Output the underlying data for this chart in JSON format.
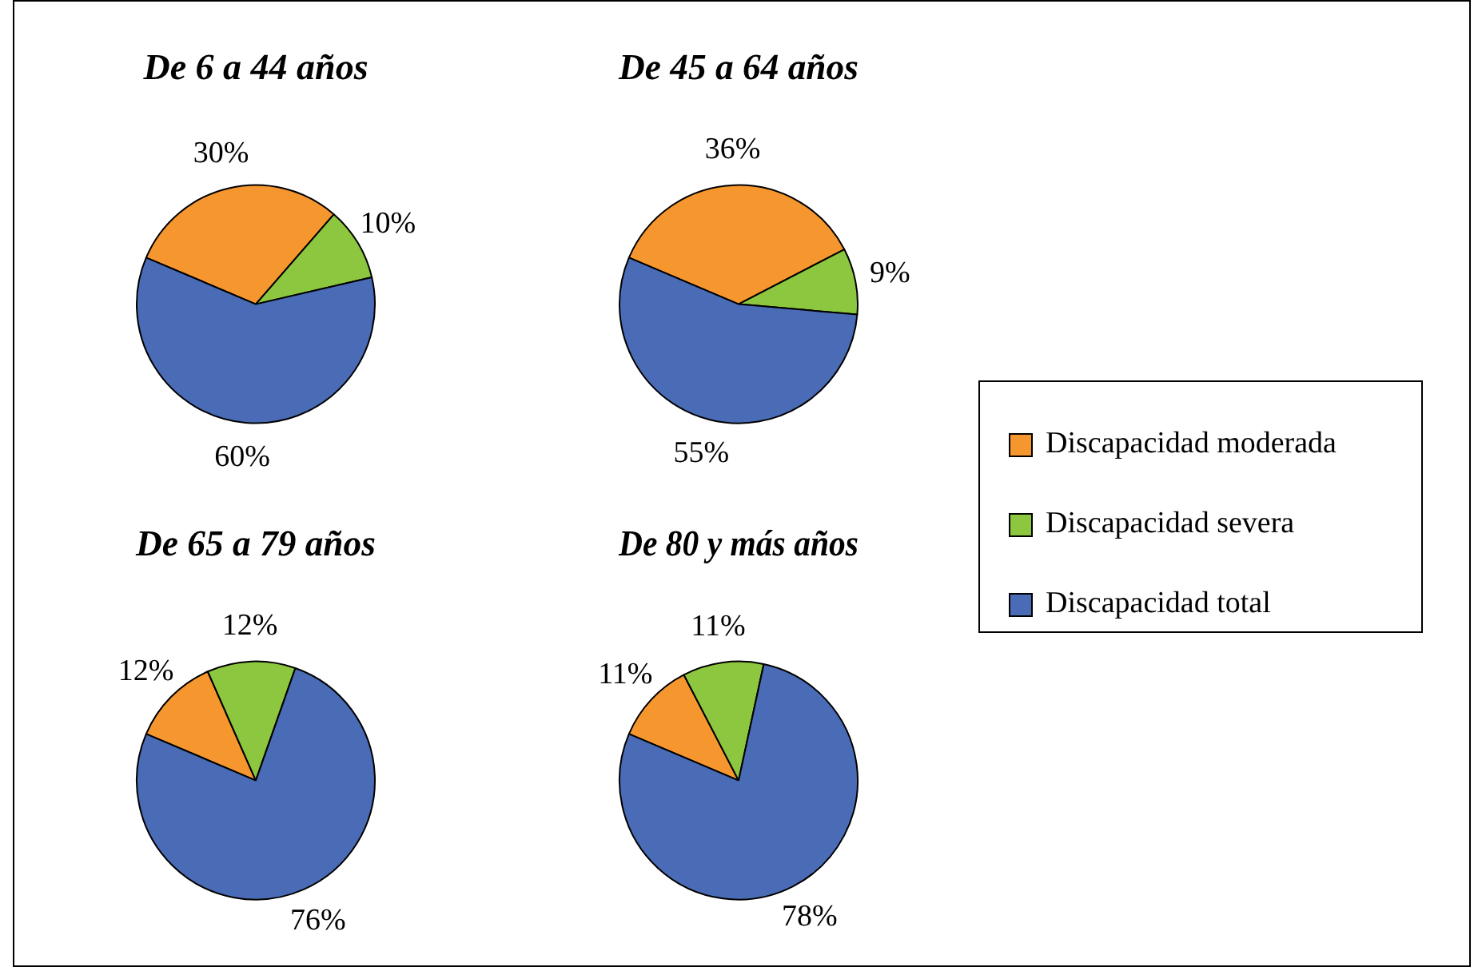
{
  "chart_data": [
    {
      "type": "pie",
      "title": "De 6 a 44 años",
      "categories": [
        "Discapacidad moderada",
        "Discapacidad severa",
        "Discapacidad total"
      ],
      "values": [
        30,
        10,
        60
      ],
      "value_labels": [
        "30%",
        "10%",
        "60%"
      ],
      "colors": [
        "#f5962f",
        "#8dc63f",
        "#4a6bb5"
      ],
      "legend": "right"
    },
    {
      "type": "pie",
      "title": "De 45 a 64 años",
      "categories": [
        null,
        null,
        null
      ],
      "values": [
        36,
        9,
        55
      ],
      "value_labels": [
        "36%",
        "9%",
        "55%"
      ],
      "colors": [
        "#f5962f",
        "#8dc63f",
        "#4a6bb5"
      ]
    },
    {
      "type": "pie",
      "title": "De 65 a 79 años",
      "categories": [
        null,
        null,
        null
      ],
      "values": [
        12,
        12,
        76
      ],
      "value_labels": [
        "12%",
        "12%",
        "76%"
      ],
      "colors": [
        "#f5962f",
        "#8dc63f",
        "#4a6bb5"
      ]
    },
    {
      "type": "pie",
      "title": "De 80 y más años",
      "categories": [
        null,
        null,
        null
      ],
      "values": [
        11,
        11,
        78
      ],
      "value_labels": [
        "11%",
        "11%",
        "78%"
      ],
      "colors": [
        "#f5962f",
        "#8dc63f",
        "#4a6bb5"
      ]
    }
  ]
}
